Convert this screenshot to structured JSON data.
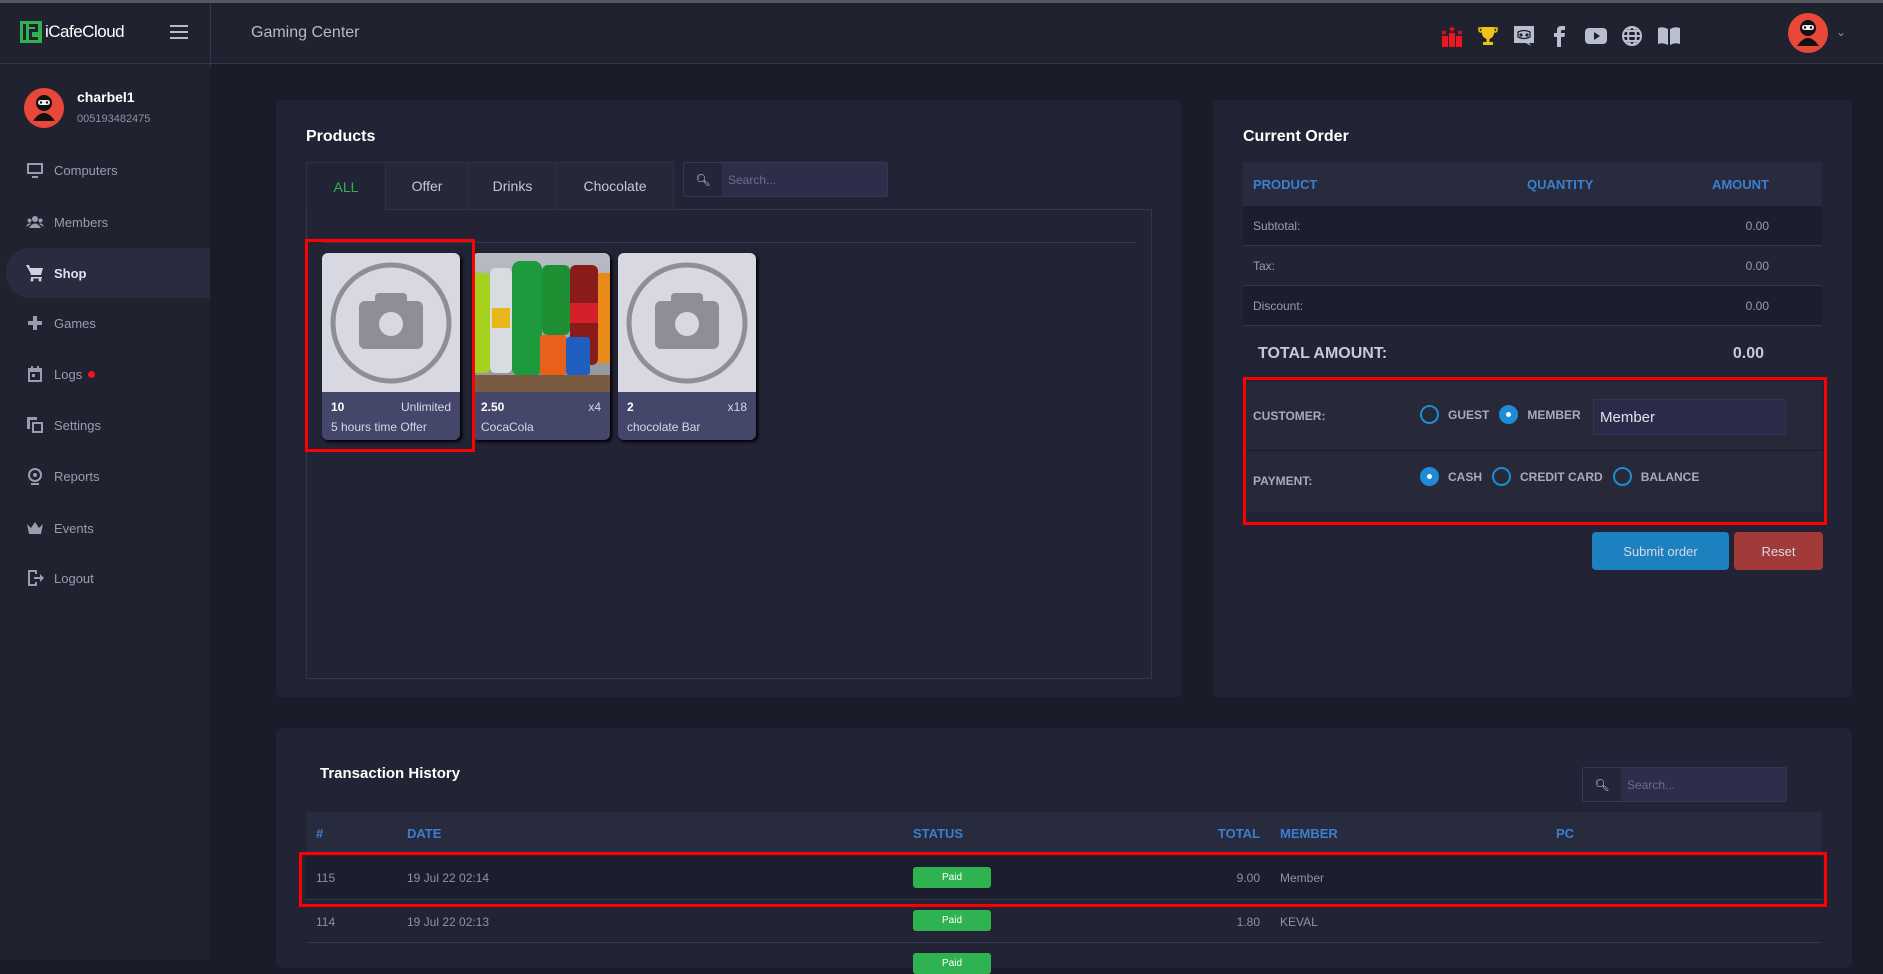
{
  "app": {
    "brand": "iCafeCloud",
    "center_name": "Gaming Center"
  },
  "colors": {
    "accent_green": "#2fb350",
    "accent_blue": "#1d8bd6",
    "reset_red": "#a33a3a",
    "highlight": "#ff0000"
  },
  "header_icons": [
    "ranking-icon",
    "trophy-icon",
    "discord-icon",
    "facebook-icon",
    "youtube-icon",
    "globe-icon",
    "book-icon"
  ],
  "user": {
    "name": "charbel1",
    "id": "005193482475"
  },
  "sidebar": {
    "items": [
      {
        "label": "Computers"
      },
      {
        "label": "Members"
      },
      {
        "label": "Shop",
        "active": true
      },
      {
        "label": "Games"
      },
      {
        "label": "Logs",
        "badge": true
      },
      {
        "label": "Settings"
      },
      {
        "label": "Reports"
      },
      {
        "label": "Events"
      },
      {
        "label": "Logout"
      }
    ]
  },
  "products": {
    "title": "Products",
    "tabs": [
      "ALL",
      "Offer",
      "Drinks",
      "Chocolate"
    ],
    "active_tab": "ALL",
    "search_placeholder": "Search...",
    "items": [
      {
        "price": "10",
        "stock": "Unlimited",
        "name": "5 hours time Offer",
        "image": "camera-placeholder"
      },
      {
        "price": "2.50",
        "stock": "x4",
        "name": "CocaCola",
        "image": "soda-bottles"
      },
      {
        "price": "2",
        "stock": "x18",
        "name": "chocolate Bar",
        "image": "camera-placeholder"
      }
    ]
  },
  "order": {
    "title": "Current Order",
    "headers": [
      "PRODUCT",
      "QUANTITY",
      "AMOUNT"
    ],
    "rows": [
      {
        "label": "Subtotal:",
        "value": "0.00"
      },
      {
        "label": "Tax:",
        "value": "0.00"
      },
      {
        "label": "Discount:",
        "value": "0.00"
      }
    ],
    "total_label": "TOTAL AMOUNT:",
    "total_value": "0.00",
    "customer_label": "CUSTOMER:",
    "customer_options": [
      "GUEST",
      "MEMBER"
    ],
    "customer_selected": "MEMBER",
    "member_value": "Member",
    "payment_label": "PAYMENT:",
    "payment_options": [
      "CASH",
      "CREDIT CARD",
      "BALANCE"
    ],
    "payment_selected": "CASH",
    "submit": "Submit order",
    "reset": "Reset"
  },
  "transactions": {
    "title": "Transaction History",
    "search_placeholder": "Search...",
    "headers": [
      "#",
      "DATE",
      "STATUS",
      "TOTAL",
      "MEMBER",
      "PC"
    ],
    "rows": [
      {
        "id": "115",
        "date": "19 Jul 22 02:14",
        "status": "Paid",
        "total": "9.00",
        "member": "Member",
        "pc": ""
      },
      {
        "id": "114",
        "date": "19 Jul 22 02:13",
        "status": "Paid",
        "total": "1.80",
        "member": "KEVAL",
        "pc": ""
      },
      {
        "id": "",
        "date": "",
        "status": "Paid",
        "total": "",
        "member": "",
        "pc": ""
      }
    ]
  }
}
